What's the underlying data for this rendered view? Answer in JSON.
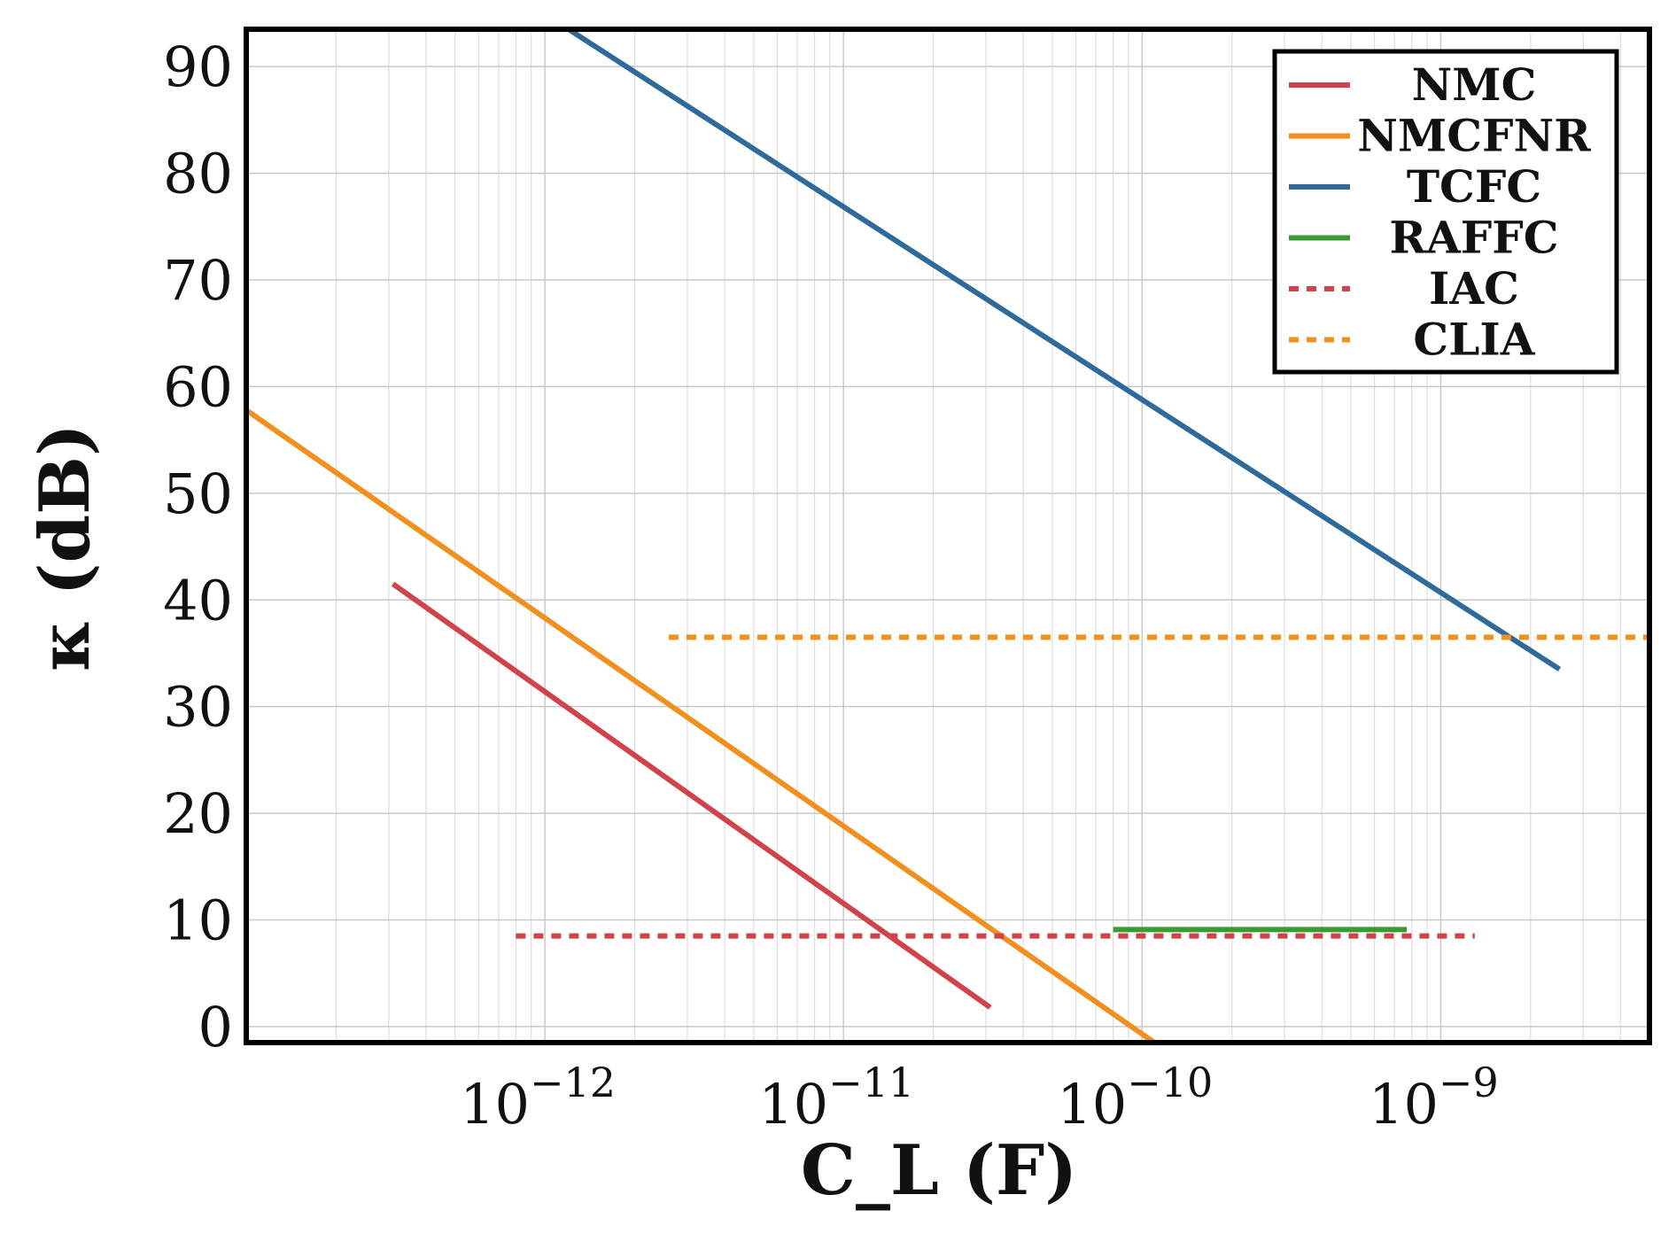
{
  "chart_data": {
    "type": "line",
    "title": "",
    "xlabel": "C_L (F)",
    "ylabel": "κ (dB)",
    "x_scale": "log",
    "xlim": [
      1e-13,
      5e-09
    ],
    "ylim": [
      -1.5,
      93.5
    ],
    "grid": true,
    "legend_position": "top-right",
    "x_ticks": [
      {
        "value": 1e-12,
        "base": "10",
        "exp": "−12"
      },
      {
        "value": 1e-11,
        "base": "10",
        "exp": "−11"
      },
      {
        "value": 1e-10,
        "base": "10",
        "exp": "−10"
      },
      {
        "value": 1e-09,
        "base": "10",
        "exp": "−9"
      }
    ],
    "y_ticks": [
      0,
      10,
      20,
      30,
      40,
      50,
      60,
      70,
      80,
      90
    ],
    "series": [
      {
        "name": "NMC",
        "color": "#d1434b",
        "style": "solid",
        "x": [
          3.1e-13,
          3.1e-11
        ],
        "y": [
          41.5,
          1.8
        ]
      },
      {
        "name": "NMCFNR",
        "color": "#f0901e",
        "style": "solid",
        "x": [
          1e-13,
          1.1e-10
        ],
        "y": [
          57.8,
          -1.5
        ]
      },
      {
        "name": "TCFC",
        "color": "#2f6b9a",
        "style": "solid",
        "x": [
          1.2e-12,
          2.5e-09
        ],
        "y": [
          93.5,
          33.5
        ]
      },
      {
        "name": "RAFFC",
        "color": "#3a9b35",
        "style": "solid",
        "x": [
          8e-11,
          7.7e-10
        ],
        "y": [
          9.1,
          9.1
        ]
      },
      {
        "name": "IAC",
        "color": "#d1434b",
        "style": "dotted",
        "x": [
          8e-13,
          1.3e-09
        ],
        "y": [
          8.5,
          8.5
        ]
      },
      {
        "name": "CLIA",
        "color": "#f0901e",
        "style": "dotted",
        "x": [
          2.6e-12,
          5e-09
        ],
        "y": [
          36.5,
          36.5
        ]
      }
    ]
  }
}
